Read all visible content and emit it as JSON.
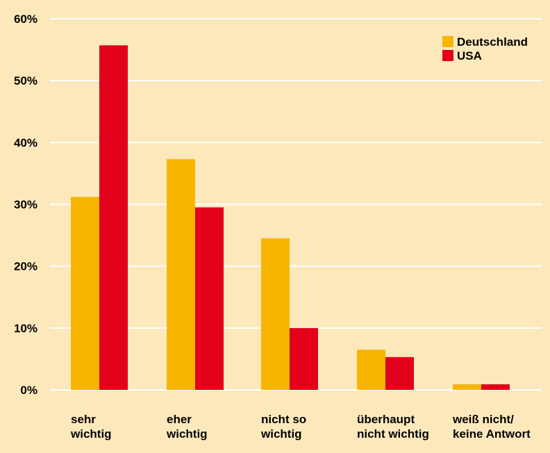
{
  "chart_data": {
    "type": "bar",
    "categories": [
      [
        "sehr",
        "wichtig"
      ],
      [
        "eher",
        "wichtig"
      ],
      [
        "nicht so",
        "wichtig"
      ],
      [
        "überhaupt",
        "nicht wichtig"
      ],
      [
        "weiß nicht/",
        "keine Antwort"
      ]
    ],
    "series": [
      {
        "name": "Deutschland",
        "color": "#f8b500",
        "values": [
          31.2,
          37.3,
          24.5,
          6.5,
          0.9
        ]
      },
      {
        "name": "USA",
        "color": "#e2001a",
        "values": [
          55.7,
          29.5,
          10.0,
          5.3,
          0.9
        ]
      }
    ],
    "ylim": [
      0,
      60
    ],
    "yticks": [
      "0%",
      "10%",
      "20%",
      "30%",
      "40%",
      "50%",
      "60%"
    ],
    "grid": true,
    "legend_position": "top-right",
    "colors": {
      "background": "#fde8bc",
      "grid": "#ffffff"
    }
  }
}
